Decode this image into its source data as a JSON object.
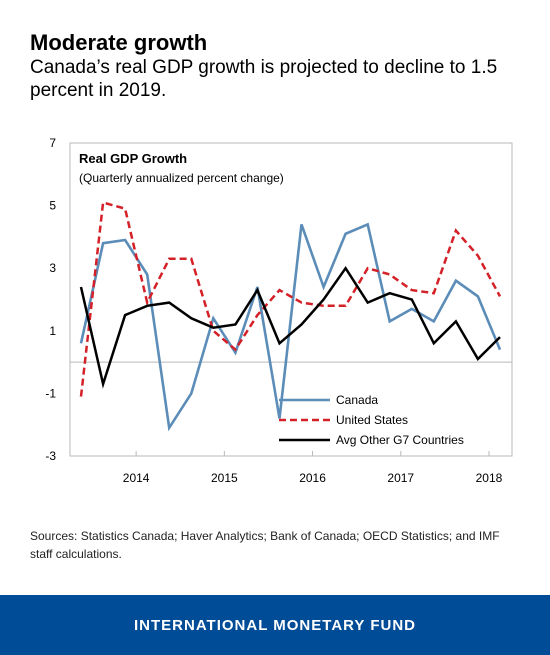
{
  "header": {
    "title": "Moderate growth",
    "subtitle": "Canada’s real GDP growth is projected to decline to 1.5 percent in 2019."
  },
  "chart_data": {
    "type": "line",
    "title": "Real GDP Growth",
    "subtitle": "(Quarterly annualized percent change)",
    "x": [
      2013.75,
      2014.0,
      2014.25,
      2014.5,
      2014.75,
      2015.0,
      2015.25,
      2015.5,
      2015.75,
      2016.0,
      2016.25,
      2016.5,
      2016.75,
      2017.0,
      2017.25,
      2017.5,
      2017.75,
      2018.0,
      2018.25,
      2018.5
    ],
    "x_tick_labels": [
      "2014",
      "2015",
      "2016",
      "2017",
      "2018"
    ],
    "ylim": [
      -3,
      7
    ],
    "y_ticks": [
      7,
      5,
      3,
      1,
      -1,
      -3
    ],
    "grid": false,
    "legend_position": "bottom-right",
    "series": [
      {
        "name": "Canada",
        "color": "#5b8db8",
        "style": "solid",
        "values": [
          0.6,
          3.8,
          3.9,
          2.8,
          -2.1,
          -1.0,
          1.4,
          0.3,
          2.4,
          -1.8,
          4.4,
          2.4,
          4.1,
          4.4,
          1.3,
          1.7,
          1.3,
          2.6,
          2.1,
          0.4
        ]
      },
      {
        "name": "United States",
        "color": "#d42027",
        "style": "dashed",
        "values": [
          -1.1,
          5.1,
          4.9,
          1.9,
          3.3,
          3.3,
          1.0,
          0.4,
          1.5,
          2.3,
          1.9,
          1.8,
          1.8,
          3.0,
          2.8,
          2.3,
          2.2,
          4.2,
          3.4,
          2.1
        ]
      },
      {
        "name": "Avg Other G7 Countries",
        "color": "#000000",
        "style": "solid",
        "values": [
          2.4,
          -0.7,
          1.5,
          1.8,
          1.9,
          1.4,
          1.1,
          1.2,
          2.3,
          0.6,
          1.2,
          2.0,
          3.0,
          1.9,
          2.2,
          2.0,
          0.6,
          1.3,
          0.1,
          0.8
        ]
      }
    ]
  },
  "sources": "Sources: Statistics Canada; Haver Analytics; Bank of Canada; OECD Statistics; and IMF staff calculations.",
  "footer": {
    "brand": "INTERNATIONAL MONETARY FUND"
  }
}
